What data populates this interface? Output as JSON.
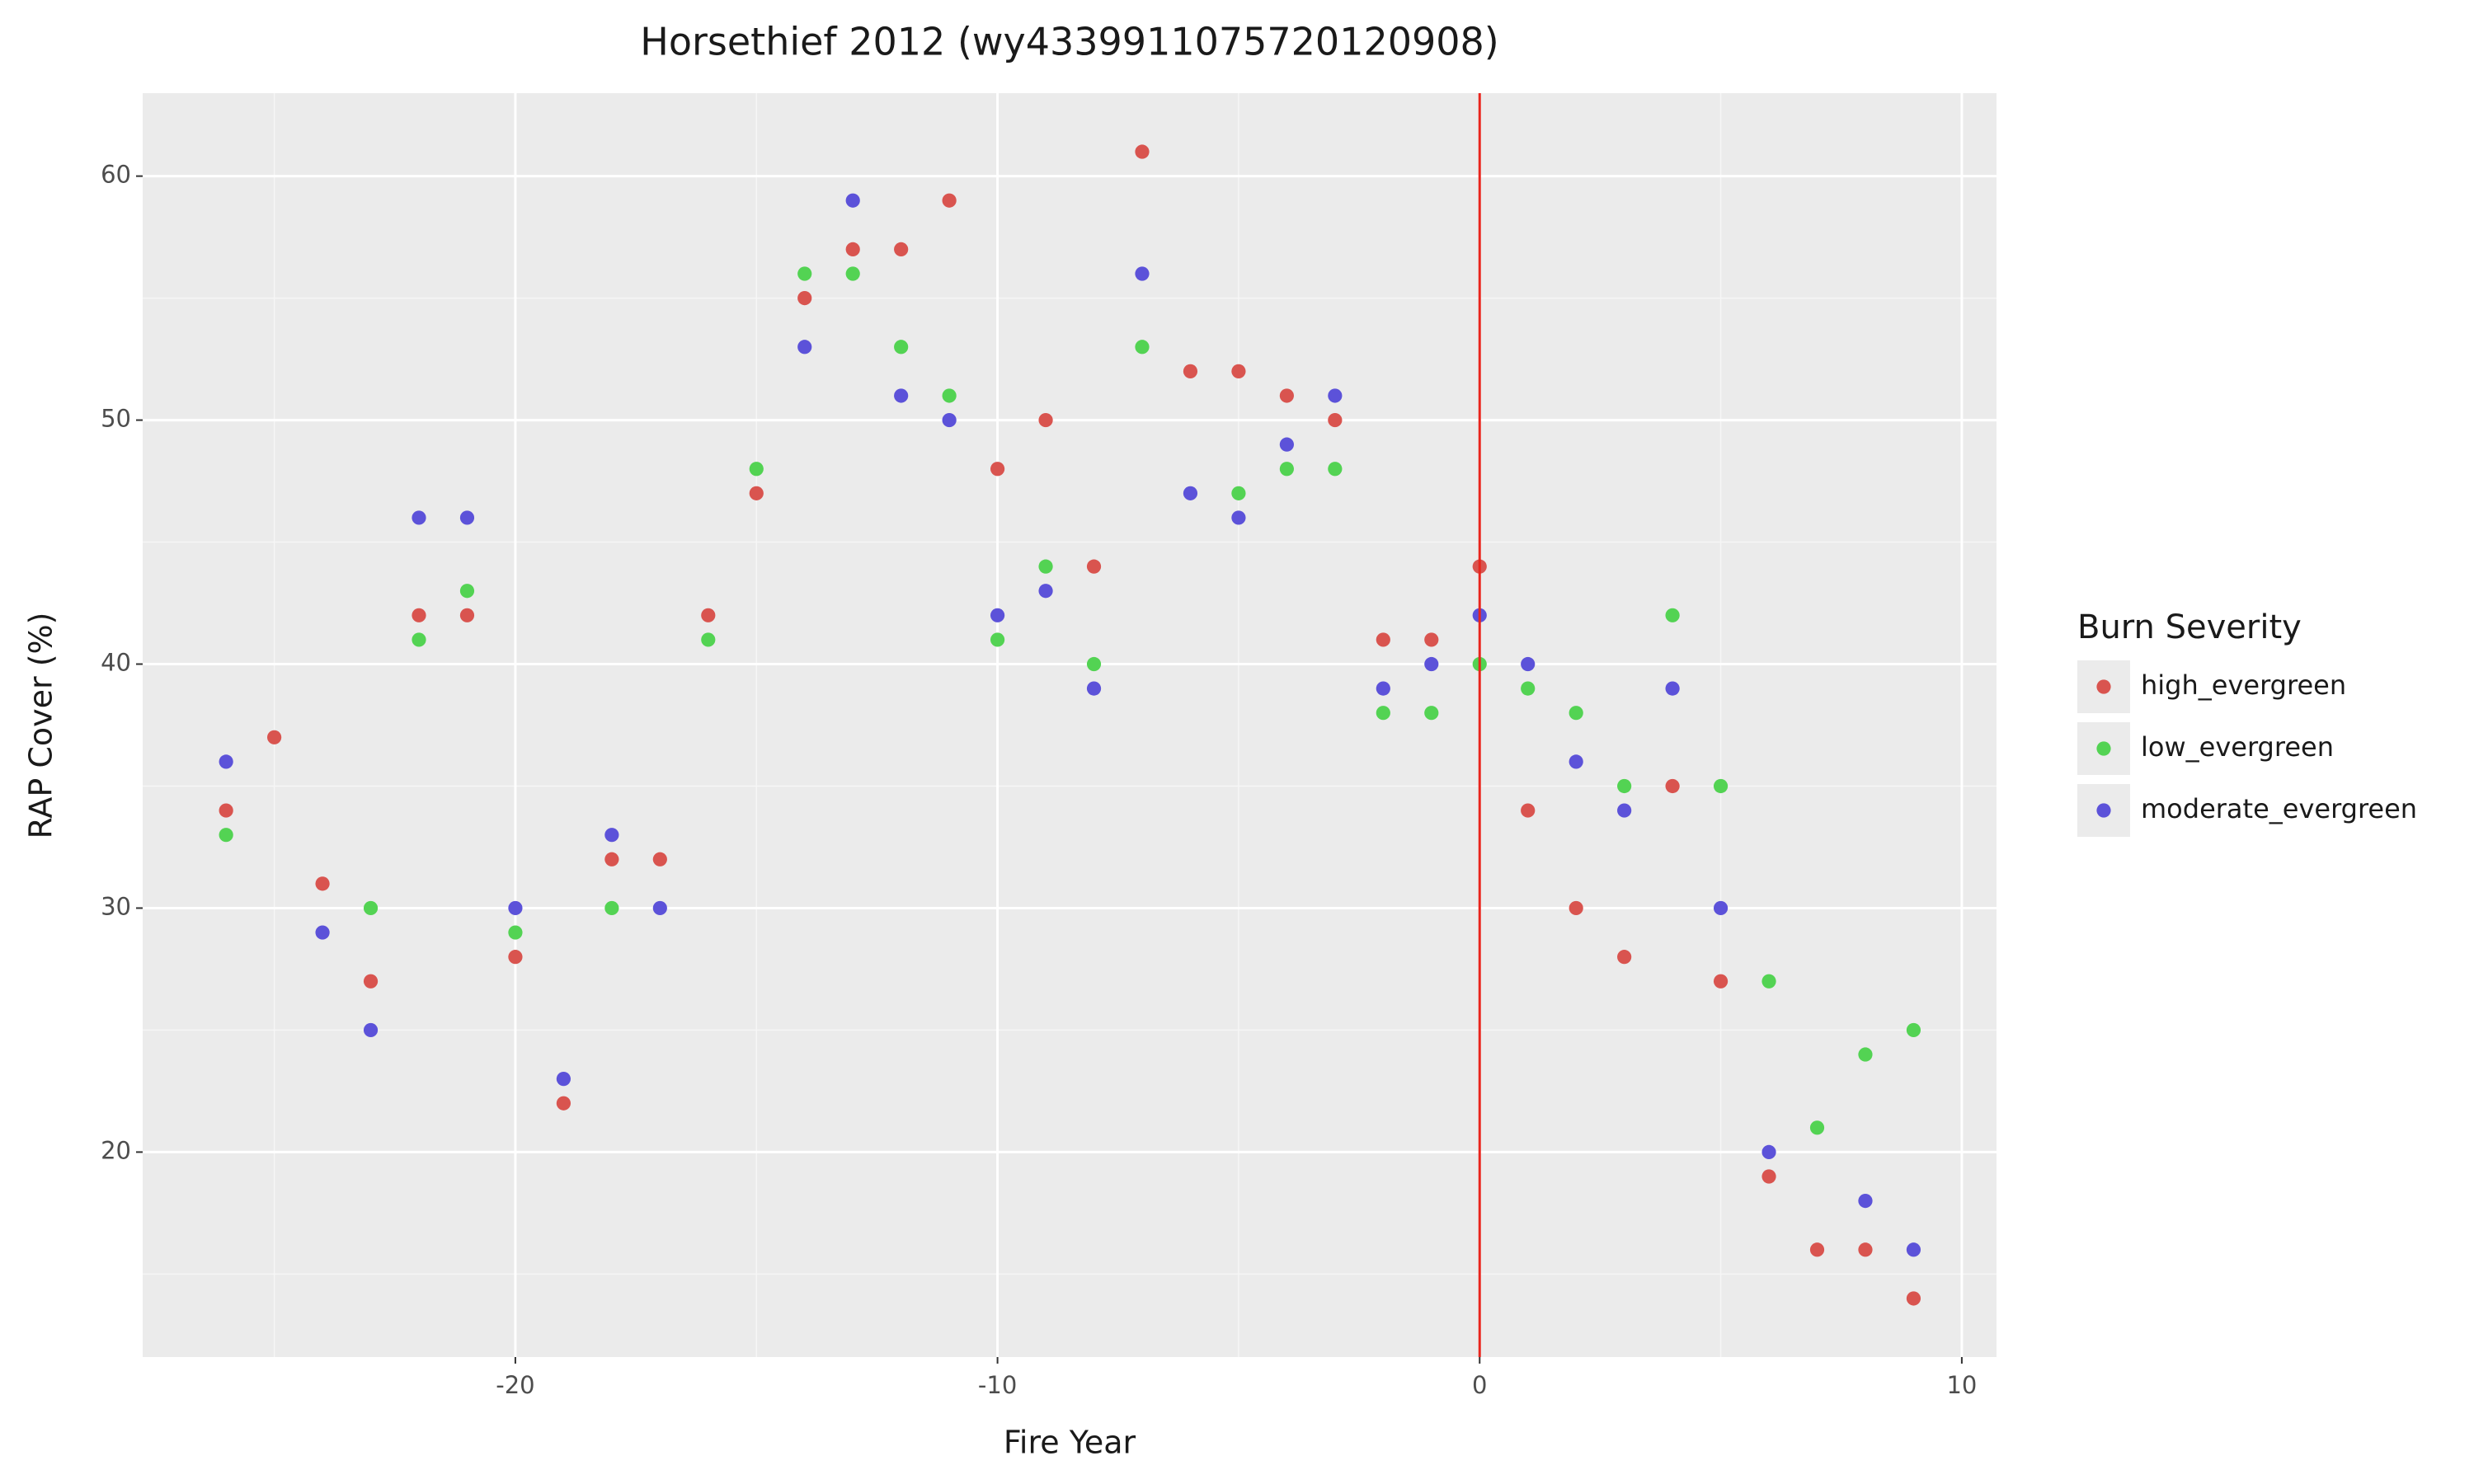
{
  "chart_data": {
    "type": "scatter",
    "title": "Horsethief 2012 (wy4339911075720120908)",
    "x_label": "Fire Year",
    "y_label": "RAP Cover (%)",
    "legend_title": "Burn Severity",
    "legend_position": "right",
    "grid": true,
    "xlim": [
      -27.73,
      10.72
    ],
    "ylim": [
      11.6,
      63.4
    ],
    "xticks": [
      -20,
      -10,
      0,
      10
    ],
    "yticks": [
      20,
      30,
      40,
      50,
      60
    ],
    "vline": {
      "x": 0,
      "color": "#e8251d"
    },
    "x": [
      -26,
      -25,
      -24,
      -23,
      -22,
      -21,
      -20,
      -19,
      -18,
      -17,
      -16,
      -15,
      -14,
      -13,
      -12,
      -11,
      -10,
      -9,
      -8,
      -7,
      -6,
      -5,
      -4,
      -3,
      -2,
      -1,
      0,
      1,
      2,
      3,
      4,
      5,
      6,
      7,
      8,
      9
    ],
    "series": [
      {
        "name": "high_evergreen",
        "color": "#d9544f",
        "values": [
          34,
          37,
          31,
          27,
          42,
          42,
          28,
          22,
          32,
          32,
          42,
          47,
          55,
          57,
          57,
          59,
          48,
          50,
          44,
          61,
          52,
          52,
          51,
          50,
          41,
          41,
          44,
          34,
          30,
          28,
          35,
          27,
          19,
          16,
          16,
          14
        ]
      },
      {
        "name": "low_evergreen",
        "color": "#53d353",
        "values": [
          33,
          null,
          null,
          30,
          41,
          43,
          29,
          null,
          30,
          null,
          41,
          48,
          56,
          56,
          53,
          51,
          41,
          44,
          40,
          53,
          null,
          47,
          48,
          48,
          38,
          38,
          40,
          39,
          38,
          35,
          42,
          35,
          27,
          21,
          24,
          25
        ]
      },
      {
        "name": "moderate_evergreen",
        "color": "#5c52d9",
        "values": [
          36,
          null,
          29,
          25,
          46,
          46,
          30,
          23,
          33,
          30,
          null,
          null,
          53,
          59,
          51,
          50,
          42,
          43,
          39,
          56,
          47,
          46,
          49,
          51,
          39,
          40,
          42,
          40,
          36,
          34,
          39,
          30,
          20,
          null,
          18,
          16
        ]
      }
    ]
  }
}
